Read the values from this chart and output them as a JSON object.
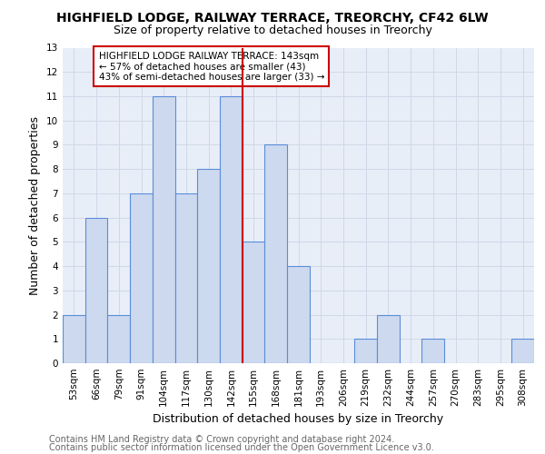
{
  "title1": "HIGHFIELD LODGE, RAILWAY TERRACE, TREORCHY, CF42 6LW",
  "title2": "Size of property relative to detached houses in Treorchy",
  "xlabel": "Distribution of detached houses by size in Treorchy",
  "ylabel": "Number of detached properties",
  "footer1": "Contains HM Land Registry data © Crown copyright and database right 2024.",
  "footer2": "Contains public sector information licensed under the Open Government Licence v3.0.",
  "categories": [
    "53sqm",
    "66sqm",
    "79sqm",
    "91sqm",
    "104sqm",
    "117sqm",
    "130sqm",
    "142sqm",
    "155sqm",
    "168sqm",
    "181sqm",
    "193sqm",
    "206sqm",
    "219sqm",
    "232sqm",
    "244sqm",
    "257sqm",
    "270sqm",
    "283sqm",
    "295sqm",
    "308sqm"
  ],
  "values": [
    2,
    6,
    2,
    7,
    11,
    7,
    8,
    11,
    5,
    9,
    4,
    0,
    0,
    1,
    2,
    0,
    1,
    0,
    0,
    0,
    1
  ],
  "bar_color": "#ccd9ee",
  "bar_edge_color": "#5b8dd9",
  "red_line_x": 7.5,
  "annotation_text": "HIGHFIELD LODGE RAILWAY TERRACE: 143sqm\n← 57% of detached houses are smaller (43)\n43% of semi-detached houses are larger (33) →",
  "annotation_box_color": "#ffffff",
  "annotation_box_edge": "#cc0000",
  "ylim": [
    0,
    13
  ],
  "yticks": [
    0,
    1,
    2,
    3,
    4,
    5,
    6,
    7,
    8,
    9,
    10,
    11,
    12,
    13
  ],
  "grid_color": "#d0d8e8",
  "bg_color": "#e8eef7",
  "title1_fontsize": 10,
  "title2_fontsize": 9,
  "axis_label_fontsize": 9,
  "tick_fontsize": 7.5,
  "annotation_fontsize": 7.5,
  "footer_fontsize": 7
}
